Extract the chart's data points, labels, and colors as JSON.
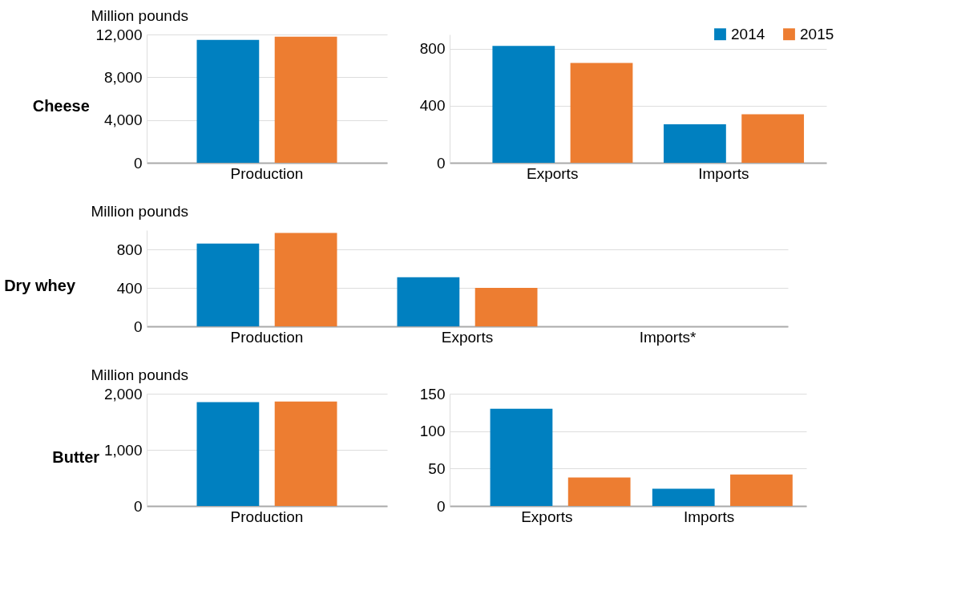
{
  "chart_data": [
    {
      "type": "bar",
      "title": "Cheese",
      "ylabel": "Million pounds",
      "categories": [
        "Production"
      ],
      "ylim": [
        0,
        12000
      ],
      "yticks": [
        0,
        {
          "value": 4000,
          "label": "4,000"
        },
        {
          "value": 8000,
          "label": "8,000"
        },
        {
          "value": 12000,
          "label": "12,000"
        }
      ],
      "grid": "y",
      "series": [
        {
          "color": "#0080c0",
          "values": [
            11500
          ]
        },
        {
          "color": "#ed7d31",
          "values": [
            11800
          ]
        }
      ]
    },
    {
      "type": "bar",
      "categories": [
        "Exports",
        "Imports"
      ],
      "ylim": [
        0,
        900
      ],
      "yticks": [
        0,
        400,
        800
      ],
      "grid": "y",
      "legend": "top right",
      "series": [
        {
          "name": "2014",
          "color": "#0080c0",
          "values": [
            820,
            270
          ]
        },
        {
          "name": "2015",
          "color": "#ed7d31",
          "values": [
            700,
            340
          ]
        }
      ]
    },
    {
      "type": "bar",
      "title": "Dry whey",
      "ylabel": "Million pounds",
      "categories": [
        "Production",
        "Exports",
        "Imports*"
      ],
      "ylim": [
        0,
        1000
      ],
      "yticks": [
        0,
        400,
        800
      ],
      "grid": "y",
      "series": [
        {
          "color": "#0080c0",
          "values": [
            860,
            510,
            null
          ]
        },
        {
          "color": "#ed7d31",
          "values": [
            970,
            400,
            null
          ]
        }
      ]
    },
    {
      "type": "bar",
      "title": "Butter",
      "ylabel": "Million pounds",
      "categories": [
        "Production"
      ],
      "ylim": [
        0,
        2000
      ],
      "yticks": [
        0,
        {
          "value": 1000,
          "label": "1,000"
        },
        {
          "value": 2000,
          "label": "2,000"
        }
      ],
      "grid": "y",
      "series": [
        {
          "color": "#0080c0",
          "values": [
            1850
          ]
        },
        {
          "color": "#ed7d31",
          "values": [
            1860
          ]
        }
      ]
    },
    {
      "type": "bar",
      "categories": [
        "Exports",
        "Imports"
      ],
      "ylim": [
        0,
        150
      ],
      "yticks": [
        0,
        50,
        100,
        150
      ],
      "grid": "y",
      "series": [
        {
          "color": "#0080c0",
          "values": [
            130,
            23
          ]
        },
        {
          "color": "#ed7d31",
          "values": [
            38,
            42
          ]
        }
      ]
    }
  ]
}
